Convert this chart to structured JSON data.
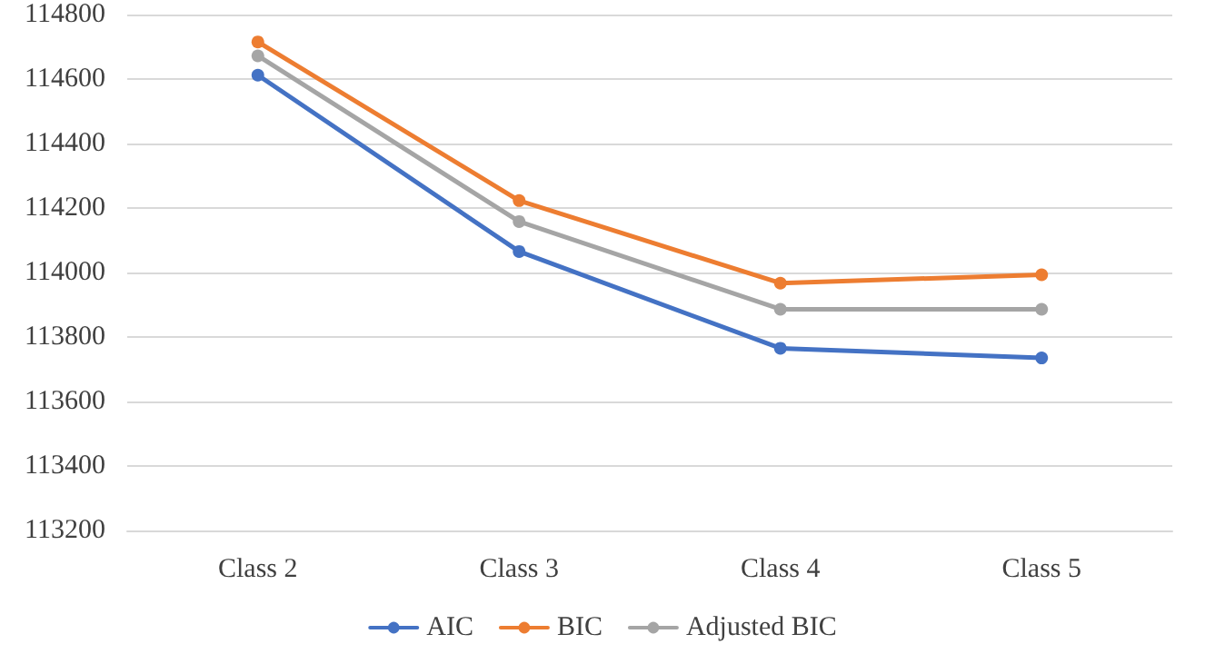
{
  "chart_data": {
    "type": "line",
    "categories": [
      "Class 2",
      "Class 3",
      "Class 4",
      "Class 5"
    ],
    "series": [
      {
        "name": "AIC",
        "color": "#4472c4",
        "values": [
          114612,
          114065,
          113765,
          113735
        ]
      },
      {
        "name": "BIC",
        "color": "#ed7d31",
        "values": [
          114715,
          114223,
          113967,
          113993
        ]
      },
      {
        "name": "Adjusted BIC",
        "color": "#a5a5a5",
        "values": [
          114672,
          114158,
          113886,
          113886
        ]
      }
    ],
    "ylim": [
      113200,
      114800
    ],
    "yticks": [
      113200,
      113400,
      113600,
      113800,
      114000,
      114200,
      114400,
      114600,
      114800
    ],
    "grid": "y",
    "legend": "bottom",
    "marker": "circle",
    "line_style": "solid"
  }
}
